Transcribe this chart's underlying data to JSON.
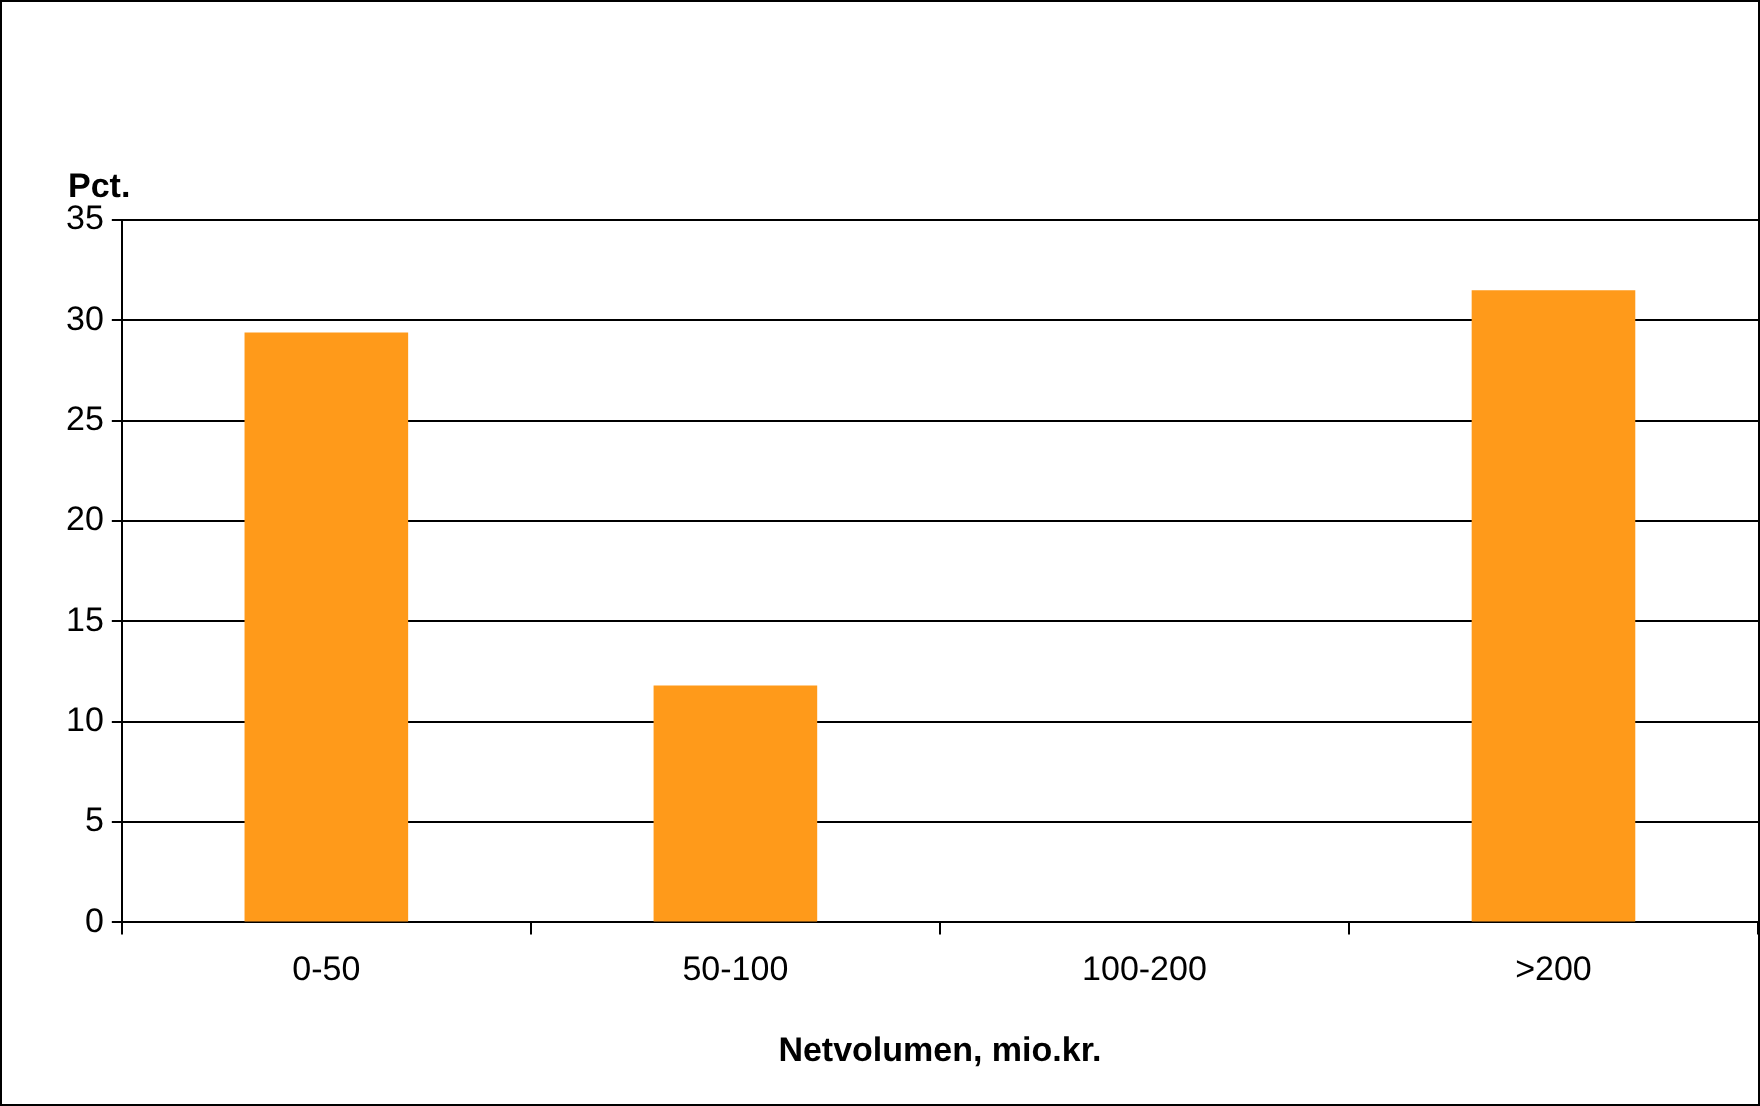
{
  "chart_data": {
    "type": "bar",
    "ylabel": "Pct.",
    "xlabel": "Netvolumen, mio.kr.",
    "categories": [
      "0-50",
      "50-100",
      "100-200",
      ">200"
    ],
    "values": [
      29.4,
      11.8,
      0,
      31.5
    ],
    "color": "#ff9a1a",
    "ylim": [
      0,
      35
    ],
    "yticks": [
      0,
      5,
      10,
      15,
      20,
      25,
      30,
      35
    ],
    "grid": "y",
    "legend": false
  }
}
